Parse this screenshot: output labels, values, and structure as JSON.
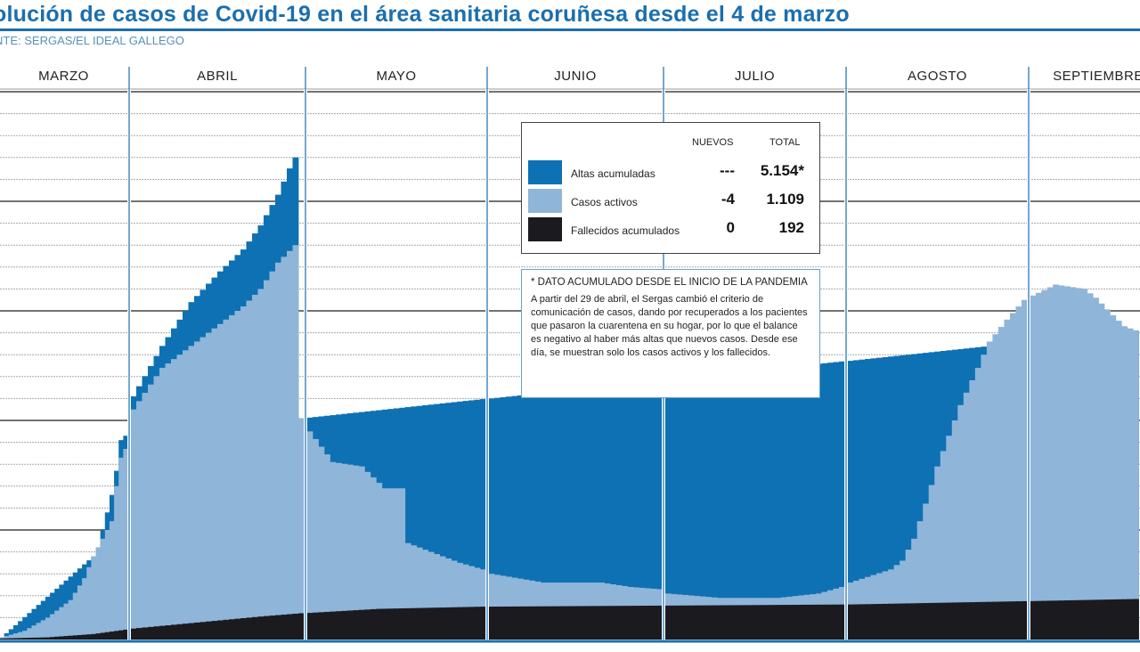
{
  "chart_data": {
    "type": "bar",
    "stacked": true,
    "title": "olución de casos de Covid-19 en el área sanitaria coruñesa desde el 4 de marzo",
    "source": "NTE: SERGAS/EL IDEAL GALLEGO",
    "xlabel": "",
    "ylabel": "",
    "y_units": "gridline units (no numeric y-axis printed)",
    "ylim": [
      0,
      25
    ],
    "grid": true,
    "months": [
      {
        "label": "MARZO",
        "days": 28
      },
      {
        "label": "ABRIL",
        "days": 30
      },
      {
        "label": "MAYO",
        "days": 31
      },
      {
        "label": "JUNIO",
        "days": 30
      },
      {
        "label": "JULIO",
        "days": 31
      },
      {
        "label": "AGOSTO",
        "days": 31
      },
      {
        "label": "SEPTIEMBRE",
        "days": 19
      }
    ],
    "x_note": "day index 0 = 4 de marzo; series given as keypoints [day, stack_top] interpolated daily",
    "series": [
      {
        "name": "Fallecidos acumulados",
        "color": "#1b1a1f",
        "keypoints": [
          [
            0,
            0.05
          ],
          [
            10,
            0.1
          ],
          [
            20,
            0.25
          ],
          [
            27,
            0.45
          ],
          [
            28,
            0.5
          ],
          [
            40,
            0.8
          ],
          [
            50,
            1.05
          ],
          [
            57,
            1.2
          ],
          [
            70,
            1.4
          ],
          [
            88,
            1.5
          ],
          [
            120,
            1.55
          ],
          [
            150,
            1.6
          ],
          [
            180,
            1.75
          ],
          [
            199,
            1.85
          ]
        ]
      },
      {
        "name": "Casos activos",
        "color": "#8fb5d9",
        "keypoints": [
          [
            0,
            0.1
          ],
          [
            5,
            0.4
          ],
          [
            10,
            1.0
          ],
          [
            15,
            1.8
          ],
          [
            18,
            2.8
          ],
          [
            20,
            3.8
          ],
          [
            22,
            4.6
          ],
          [
            24,
            5.4
          ],
          [
            25,
            7.0
          ],
          [
            26,
            8.3
          ],
          [
            27,
            8.7
          ],
          [
            28,
            10.5
          ],
          [
            33,
            12.4
          ],
          [
            38,
            13.4
          ],
          [
            43,
            14.4
          ],
          [
            47,
            15.2
          ],
          [
            50,
            16.0
          ],
          [
            53,
            17.2
          ],
          [
            56,
            18.0
          ],
          [
            57,
            10.1
          ],
          [
            58,
            9.5
          ],
          [
            62,
            8.1
          ],
          [
            67,
            7.9
          ],
          [
            71,
            6.9
          ],
          [
            74,
            6.9
          ],
          [
            75,
            4.4
          ],
          [
            79,
            4.0
          ],
          [
            84,
            3.5
          ],
          [
            88,
            3.2
          ],
          [
            89,
            3.0
          ],
          [
            98,
            2.6
          ],
          [
            108,
            2.6
          ],
          [
            113,
            2.4
          ],
          [
            118,
            2.3
          ],
          [
            119,
            2.1
          ],
          [
            128,
            1.9
          ],
          [
            138,
            1.9
          ],
          [
            145,
            2.1
          ],
          [
            149,
            2.4
          ],
          [
            150,
            2.6
          ],
          [
            157,
            3.2
          ],
          [
            159,
            3.6
          ],
          [
            161,
            4.6
          ],
          [
            163,
            6.2
          ],
          [
            165,
            7.9
          ],
          [
            169,
            10.7
          ],
          [
            172,
            12.4
          ],
          [
            174,
            13.6
          ],
          [
            177,
            14.6
          ],
          [
            180,
            15.5
          ],
          [
            181,
            15.7
          ],
          [
            185,
            16.2
          ],
          [
            190,
            16.0
          ],
          [
            192,
            15.6
          ],
          [
            195,
            14.8
          ],
          [
            197,
            14.3
          ],
          [
            199,
            14.1
          ]
        ]
      },
      {
        "name": "Altas acumuladas",
        "color": "#0e71b3",
        "keypoints": [
          [
            0,
            0.1
          ],
          [
            20,
            3.8
          ],
          [
            21,
            4.2
          ],
          [
            22,
            5.0
          ],
          [
            24,
            6.6
          ],
          [
            25,
            7.7
          ],
          [
            26,
            9.1
          ],
          [
            27,
            9.3
          ],
          [
            28,
            11.1
          ],
          [
            33,
            13.4
          ],
          [
            38,
            15.4
          ],
          [
            43,
            16.8
          ],
          [
            47,
            17.8
          ],
          [
            50,
            18.9
          ],
          [
            53,
            20.3
          ],
          [
            55,
            21.5
          ],
          [
            56,
            22.0
          ],
          [
            57,
            10.1
          ],
          [
            199,
            14.1
          ]
        ]
      }
    ]
  },
  "legend": {
    "col_new": "NUEVOS",
    "col_total": "TOTAL",
    "rows": [
      {
        "label": "Altas acumuladas",
        "new": "---",
        "total": "5.154*",
        "color": "#0e71b3"
      },
      {
        "label": "Casos activos",
        "new": "-4",
        "total": "1.109",
        "color": "#8fb5d9"
      },
      {
        "label": "Fallecidos acumulados",
        "new": "0",
        "total": "192",
        "color": "#1b1a1f"
      }
    ]
  },
  "note": {
    "heading": "* DATO ACUMULADO DESDE EL INICIO DE LA PANDEMIA",
    "body": "A partir del 29 de abril, el Sergas cambió el criterio de comunicación de casos, dando por recuperados a los pacientes que pasaron la cuarentena en su hogar, por lo que el balance es negativo al haber más altas que nuevos casos. Desde ese día, se muestran solo los casos activos y los fallecidos."
  }
}
